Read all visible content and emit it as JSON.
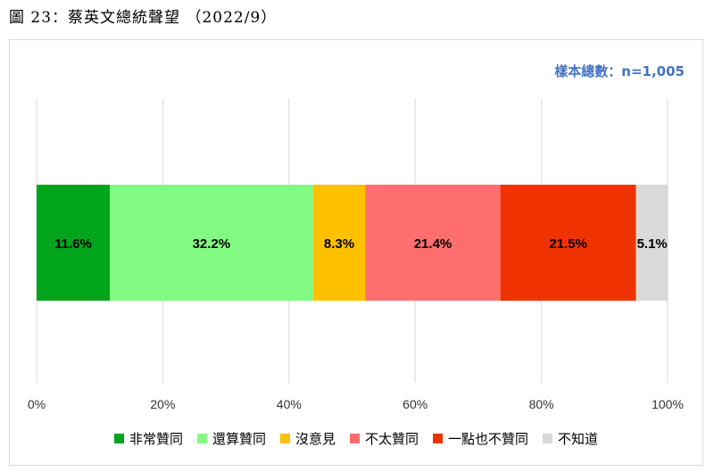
{
  "figure": {
    "title": "圖 23：蔡英文總統聲望 （2022/9）",
    "sample_note": "樣本總數：n=1,005"
  },
  "chart_data": {
    "type": "bar",
    "orientation": "horizontal",
    "stacked": true,
    "categories": [
      ""
    ],
    "series": [
      {
        "name": "非常贊同",
        "values": [
          11.6
        ],
        "label": "11.6%",
        "color": "#00a51c"
      },
      {
        "name": "還算贊同",
        "values": [
          32.2
        ],
        "label": "32.2%",
        "color": "#82fa82"
      },
      {
        "name": "沒意見",
        "values": [
          8.3
        ],
        "label": "8.3%",
        "color": "#ffc000"
      },
      {
        "name": "不太贊同",
        "values": [
          21.4
        ],
        "label": "21.4%",
        "color": "#fe6e6e"
      },
      {
        "name": "一點也不贊同",
        "values": [
          21.5
        ],
        "label": "21.5%",
        "color": "#f03200"
      },
      {
        "name": "不知道",
        "values": [
          5.1
        ],
        "label": "5.1%",
        "color": "#d9d9d9"
      }
    ],
    "xlim": [
      0,
      100
    ],
    "xticks": [
      "0%",
      "20%",
      "40%",
      "60%",
      "80%",
      "100%"
    ],
    "grid": true,
    "legend_position": "bottom"
  }
}
